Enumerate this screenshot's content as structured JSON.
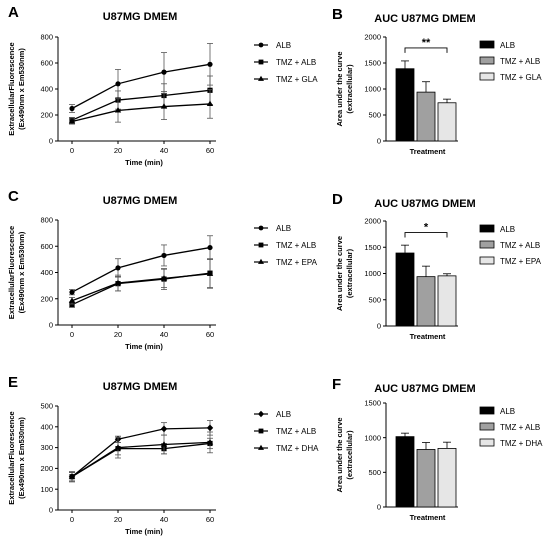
{
  "colors": {
    "ink": "#000000",
    "dark_bar": "#000000",
    "mid_bar": "#a0a0a0",
    "light_bar": "#e6e6e6"
  },
  "chart_data": [
    {
      "panel": "A",
      "type": "line",
      "title": "U87MG DMEM",
      "xlabel": "Time (min)",
      "ylabel": [
        "ExtracellularFluorescence",
        "(Ex490nm x Em530nm)"
      ],
      "x": [
        0,
        20,
        40,
        60
      ],
      "xlim": [
        0,
        60
      ],
      "ylim": [
        0,
        800
      ],
      "yticks": [
        0,
        200,
        400,
        600,
        800
      ],
      "legend_position": "right",
      "series": [
        {
          "name": "ALB",
          "marker": "circle",
          "values": [
            250,
            440,
            530,
            590
          ],
          "errors": [
            30,
            110,
            150,
            160
          ]
        },
        {
          "name": "TMZ + ALB",
          "marker": "square",
          "values": [
            160,
            315,
            350,
            390
          ],
          "errors": [
            20,
            70,
            90,
            110
          ]
        },
        {
          "name": "TMZ + GLA",
          "marker": "triangle",
          "values": [
            150,
            235,
            265,
            285
          ],
          "errors": [
            20,
            90,
            100,
            110
          ]
        }
      ]
    },
    {
      "panel": "B",
      "type": "bar",
      "title": "AUC U87MG DMEM",
      "xlabel": "Treatment",
      "ylabel": [
        "Area under the curve",
        "(extracellular)"
      ],
      "ylim": [
        0,
        2000
      ],
      "yticks": [
        0,
        500,
        1000,
        1500,
        2000
      ],
      "legend_position": "right",
      "categories": [
        "ALB",
        "TMZ + ALB",
        "TMZ + GLA"
      ],
      "values": [
        1390,
        940,
        735
      ],
      "errors": [
        150,
        200,
        70
      ],
      "significance": {
        "label": "**",
        "between": [
          0,
          2
        ],
        "y": 1790
      }
    },
    {
      "panel": "C",
      "type": "line",
      "title": "U87MG DMEM",
      "xlabel": "Time (min)",
      "ylabel": [
        "ExtracellularFluorescence",
        "(Ex490nm x Em530nm)"
      ],
      "x": [
        0,
        20,
        40,
        60
      ],
      "xlim": [
        0,
        60
      ],
      "ylim": [
        0,
        800
      ],
      "yticks": [
        0,
        200,
        400,
        600,
        800
      ],
      "legend_position": "right",
      "series": [
        {
          "name": "ALB",
          "marker": "circle",
          "values": [
            250,
            435,
            530,
            590
          ],
          "errors": [
            20,
            70,
            80,
            90
          ]
        },
        {
          "name": "TMZ + ALB",
          "marker": "square",
          "values": [
            155,
            315,
            350,
            395
          ],
          "errors": [
            20,
            55,
            80,
            110
          ]
        },
        {
          "name": "TMZ + EPA",
          "marker": "triangle",
          "values": [
            185,
            320,
            355,
            390
          ],
          "errors": [
            25,
            60,
            70,
            110
          ]
        }
      ]
    },
    {
      "panel": "D",
      "type": "bar",
      "title": "AUC U87MG DMEM",
      "xlabel": "Treatment",
      "ylabel": [
        "Area under the curve",
        "(extracellular)"
      ],
      "ylim": [
        0,
        2000
      ],
      "yticks": [
        0,
        500,
        1000,
        1500,
        2000
      ],
      "legend_position": "right",
      "categories": [
        "ALB",
        "TMZ + ALB",
        "TMZ + EPA"
      ],
      "values": [
        1390,
        940,
        955
      ],
      "errors": [
        150,
        200,
        40
      ],
      "significance": {
        "label": "*",
        "between": [
          0,
          2
        ],
        "y": 1780
      }
    },
    {
      "panel": "E",
      "type": "line",
      "title": "U87MG DMEM",
      "xlabel": "Time (min)",
      "ylabel": [
        "ExtracellularFluorescence",
        "(Ex490nm x Em530nm)"
      ],
      "x": [
        0,
        20,
        40,
        60
      ],
      "xlim": [
        0,
        60
      ],
      "ylim": [
        0,
        500
      ],
      "yticks": [
        0,
        100,
        200,
        300,
        400,
        500
      ],
      "legend_position": "right",
      "series": [
        {
          "name": "ALB",
          "marker": "diamond",
          "values": [
            160,
            340,
            390,
            395
          ],
          "errors": [
            20,
            15,
            30,
            35
          ]
        },
        {
          "name": "TMZ + ALB",
          "marker": "square",
          "values": [
            160,
            295,
            295,
            320
          ],
          "errors": [
            20,
            30,
            25,
            25
          ]
        },
        {
          "name": "TMZ + DHA",
          "marker": "triangle",
          "values": [
            160,
            300,
            315,
            325
          ],
          "errors": [
            25,
            50,
            45,
            50
          ]
        }
      ]
    },
    {
      "panel": "F",
      "type": "bar",
      "title": "AUC U87MG DMEM",
      "xlabel": "Treatment",
      "ylabel": [
        "Area under the curve",
        "(extracellular)"
      ],
      "ylim": [
        0,
        1500
      ],
      "yticks": [
        0,
        500,
        1000,
        1500
      ],
      "legend_position": "right",
      "categories": [
        "ALB",
        "TMZ + ALB",
        "TMZ + DHA"
      ],
      "values": [
        1015,
        830,
        845
      ],
      "errors": [
        50,
        100,
        90
      ]
    }
  ]
}
